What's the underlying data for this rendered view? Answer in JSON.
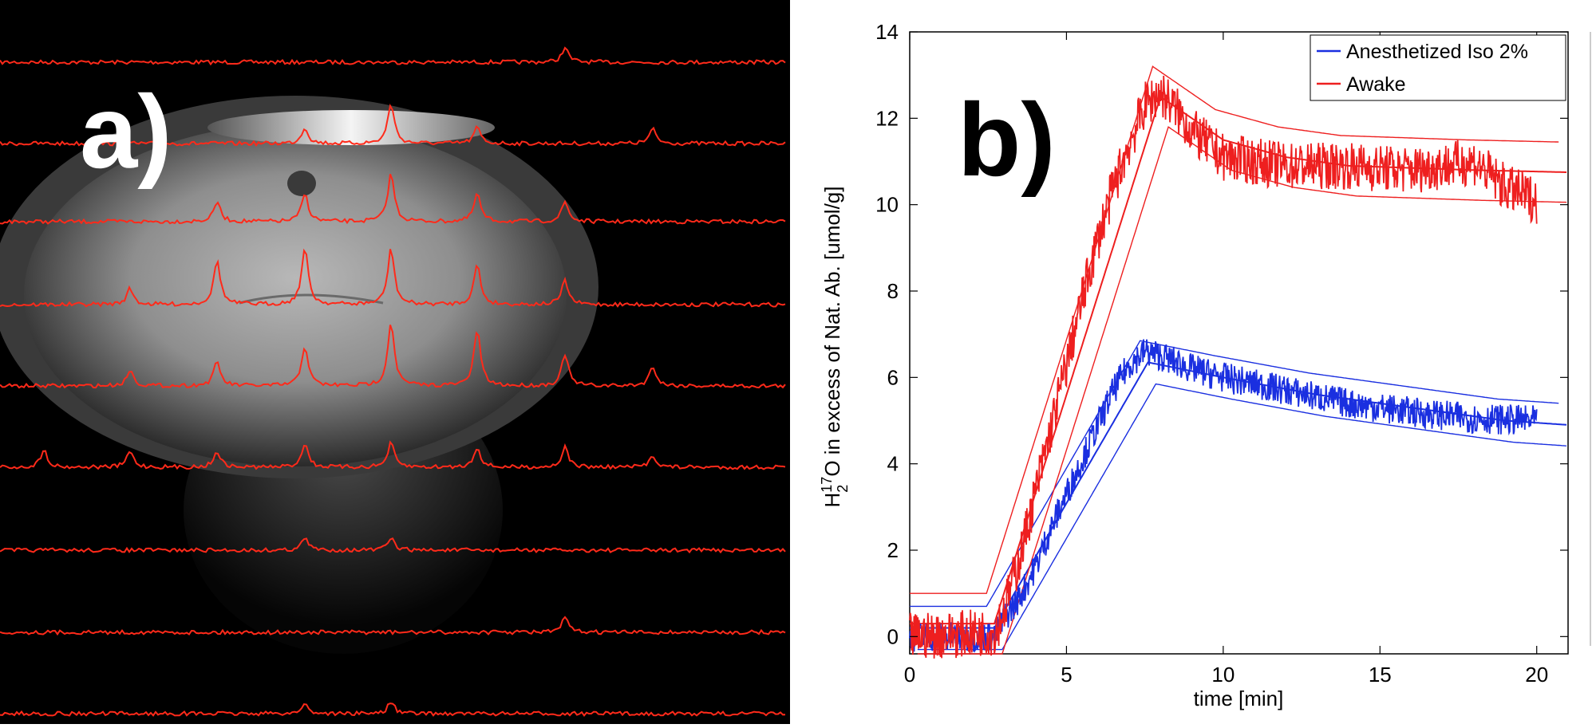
{
  "panel_a": {
    "label": "a)",
    "trace_color": "#ff2a1a",
    "image_desc_hidden": ""
  },
  "panel_b": {
    "label": "b)"
  },
  "chart_data": {
    "type": "line",
    "xlabel": "time [min]",
    "ylabel_parts": {
      "base1": "H",
      "sub": "2",
      "sup": "17",
      "base2": "O in excess of Nat. Ab. [umol/g]"
    },
    "xlim": [
      0,
      21
    ],
    "ylim": [
      -0.4,
      14
    ],
    "xticks": [
      0,
      5,
      10,
      15,
      20
    ],
    "yticks": [
      0,
      2,
      4,
      6,
      8,
      10,
      12,
      14
    ],
    "legend_position": "top-right",
    "series": [
      {
        "name": "Anesthetized Iso 2%",
        "color": "#1a2fe0",
        "x": [
          0,
          2.7,
          3.0,
          3.5,
          4,
          4.5,
          5,
          5.5,
          6,
          6.5,
          7,
          7.5,
          8,
          9,
          10,
          12,
          14,
          16,
          18,
          20
        ],
        "y": [
          0.0,
          0.0,
          0.4,
          0.9,
          1.6,
          2.5,
          3.3,
          4.1,
          4.9,
          5.7,
          6.3,
          6.6,
          6.5,
          6.2,
          6.0,
          5.7,
          5.4,
          5.2,
          5.05,
          5.0
        ],
        "fit_x": [
          0,
          2.7,
          7.6,
          10,
          13,
          16,
          19,
          21
        ],
        "fit_y": [
          0.2,
          0.2,
          6.35,
          6.0,
          5.6,
          5.3,
          5.0,
          4.9
        ],
        "band": 0.5
      },
      {
        "name": "Awake",
        "color": "#ee1f1f",
        "x": [
          0,
          2.7,
          3.0,
          3.5,
          4,
          4.5,
          5,
          5.5,
          6,
          6.5,
          7,
          7.5,
          8,
          8.5,
          9,
          10,
          12,
          14,
          16,
          18,
          19,
          20
        ],
        "y": [
          0.0,
          0.1,
          0.6,
          1.8,
          3.3,
          4.8,
          6.3,
          7.8,
          9.2,
          10.4,
          11.4,
          12.3,
          12.6,
          12.2,
          11.7,
          11.1,
          10.9,
          10.9,
          10.8,
          11.0,
          10.4,
          10.1
        ],
        "fit_x": [
          0,
          2.7,
          8.0,
          9,
          10,
          12,
          14,
          16,
          18,
          21
        ],
        "fit_y": [
          0.3,
          0.3,
          12.5,
          12.0,
          11.5,
          11.1,
          10.9,
          10.85,
          10.8,
          10.75
        ],
        "band": 0.7
      }
    ]
  }
}
